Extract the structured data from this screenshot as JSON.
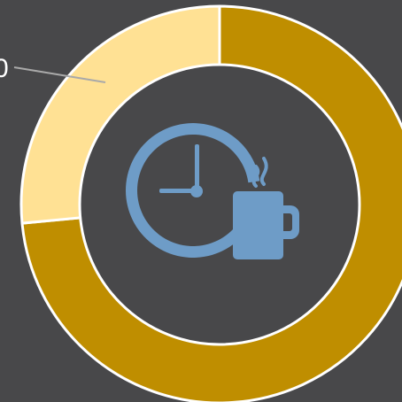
{
  "colors": {
    "background": "#48484a",
    "center_fill": "#48484a",
    "ring_border": "#ffffff",
    "leader_line": "#a9a9a9",
    "icon_fill": "#6e9cc7",
    "callout_text": "#ffffff"
  },
  "center_icon": {
    "name": "clock-and-coffee-mug-icon"
  },
  "callout": {
    "text": "0"
  },
  "chart_data": {
    "type": "pie",
    "variant": "donut",
    "start": "top",
    "direction": "clockwise",
    "slices": [
      {
        "value": 0.735,
        "color": "#bf8e00"
      },
      {
        "value": 0.265,
        "color": "#ffe194"
      }
    ]
  }
}
